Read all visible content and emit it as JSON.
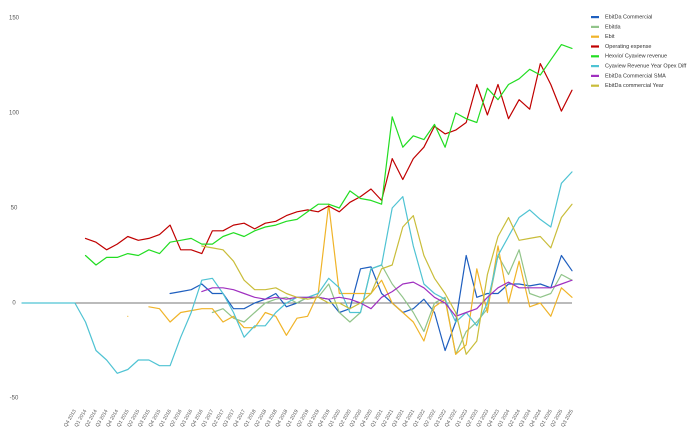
{
  "chart_data": {
    "type": "line",
    "categories": [
      null,
      null,
      null,
      null,
      null,
      "Q4 2013",
      "Q1 2014",
      "Q2 2014",
      "Q3 2014",
      "Q4 2014",
      "Q1 2015",
      "Q2 2015",
      "Q3 2015",
      "Q4 2015",
      "Q1 2016",
      "Q2 2016",
      "Q3 2016",
      "Q4 2016",
      "Q1 2017",
      "Q2 2017",
      "Q3 2017",
      "Q4 2017",
      "Q1 2018",
      "Q2 2018",
      "Q3 2018",
      "Q4 2018",
      "Q1 2019",
      "Q2 2019",
      "Q3 2019",
      "Q4 2019",
      "Q1 2020",
      "Q2 2020",
      "Q3 2020",
      "Q4 2020",
      "Q1 2021",
      "Q2 2021",
      "Q3 2021",
      "Q4 2021",
      "Q1 2022",
      "Q2 2022",
      "Q3 2022",
      "Q4 2022",
      "Q1 2023",
      "Q2 2023",
      "Q3 2023",
      "Q4 2023",
      "Q1 2024",
      "Q2 2024",
      "Q3 2024",
      "Q4 2024",
      "Q1 2025",
      "Q2 2025",
      "Q3 2025"
    ],
    "series": [
      {
        "name": "EbitDa Commercial",
        "color": "#1f5fbf",
        "values": [
          null,
          null,
          null,
          null,
          null,
          null,
          null,
          null,
          null,
          null,
          null,
          null,
          null,
          null,
          5,
          6,
          7,
          10,
          5,
          5,
          -3,
          -3,
          0,
          2,
          5,
          -2,
          0,
          3,
          3,
          2,
          -5,
          -3,
          18,
          19,
          5,
          0,
          -5,
          -3,
          2,
          -5,
          -25,
          -10,
          25,
          3,
          5,
          5,
          10,
          10,
          9,
          10,
          8,
          25,
          17
        ]
      },
      {
        "name": "Ebitda",
        "color": "#91c48a",
        "values": [
          null,
          null,
          null,
          null,
          null,
          null,
          null,
          null,
          null,
          null,
          null,
          null,
          null,
          null,
          null,
          null,
          null,
          null,
          -5,
          -3,
          -8,
          -10,
          -5,
          0,
          2,
          3,
          0,
          3,
          3,
          10,
          -5,
          -10,
          -5,
          18,
          20,
          10,
          3,
          -5,
          -15,
          0,
          3,
          -27,
          -15,
          -10,
          -3,
          25,
          15,
          28,
          5,
          3,
          5,
          15,
          12
        ]
      },
      {
        "name": "Ebit",
        "color": "#f0b429",
        "values": [
          null,
          null,
          null,
          null,
          null,
          null,
          null,
          null,
          null,
          null,
          -7,
          null,
          -2,
          -3,
          -10,
          -5,
          -4,
          -3,
          -3,
          -10,
          -7,
          -13,
          -13,
          -5,
          -7,
          -17,
          -8,
          -7,
          5,
          52,
          5,
          5,
          5,
          5,
          12,
          0,
          -5,
          -10,
          -20,
          -2,
          2,
          -27,
          -22,
          18,
          -5,
          30,
          0,
          22,
          -2,
          0,
          -7,
          8,
          3
        ]
      },
      {
        "name": "Operating expense",
        "color": "#c00000",
        "values": [
          null,
          null,
          null,
          null,
          null,
          null,
          34,
          32,
          28,
          31,
          35,
          33,
          34,
          36,
          41,
          28,
          28,
          26,
          38,
          38,
          41,
          42,
          39,
          42,
          43,
          46,
          48,
          49,
          48,
          51,
          48,
          53,
          56,
          60,
          54,
          76,
          65,
          76,
          82,
          93,
          89,
          91,
          95,
          115,
          99,
          115,
          97,
          107,
          102,
          126,
          115,
          101,
          112
        ]
      },
      {
        "name": "Hexvio/ Cyaview revenue",
        "color": "#22dd22",
        "values": [
          null,
          null,
          null,
          null,
          null,
          null,
          25,
          20,
          24,
          24,
          26,
          25,
          28,
          26,
          32,
          33,
          34,
          31,
          31,
          35,
          37,
          35,
          38,
          40,
          41,
          43,
          44,
          48,
          52,
          52,
          50,
          59,
          55,
          54,
          52,
          98,
          82,
          88,
          86,
          94,
          82,
          100,
          97,
          95,
          113,
          107,
          115,
          118,
          123,
          120,
          128,
          136,
          134
        ]
      },
      {
        "name": "Cyaview Revenue Year Opex Diff",
        "color": "#4fc3d3",
        "values": [
          0,
          0,
          0,
          0,
          0,
          0,
          -10,
          -25,
          -30,
          -37,
          -35,
          -30,
          -30,
          -33,
          -33,
          -18,
          -5,
          12,
          13,
          5,
          -5,
          -18,
          -12,
          -12,
          -5,
          0,
          3,
          3,
          5,
          13,
          8,
          -5,
          -5,
          18,
          20,
          50,
          56,
          30,
          10,
          5,
          2,
          -10,
          -5,
          -12,
          0,
          25,
          35,
          45,
          49,
          44,
          40,
          63,
          69
        ]
      },
      {
        "name": "EbitDa Commercial SMA",
        "color": "#a030c0",
        "values": [
          null,
          null,
          null,
          null,
          null,
          null,
          null,
          null,
          null,
          null,
          null,
          null,
          null,
          null,
          null,
          null,
          null,
          6,
          8,
          8,
          7,
          5,
          3,
          2,
          3,
          2,
          3,
          3,
          3,
          2,
          3,
          2,
          0,
          -3,
          3,
          6,
          10,
          11,
          8,
          3,
          0,
          -7,
          -5,
          -3,
          3,
          8,
          11,
          8,
          8,
          8,
          8,
          10,
          12
        ]
      },
      {
        "name": "EbitDa commercial Year",
        "color": "#c9bd3a",
        "values": [
          null,
          null,
          null,
          null,
          null,
          null,
          null,
          null,
          null,
          null,
          null,
          null,
          null,
          null,
          null,
          null,
          null,
          30,
          29,
          28,
          22,
          12,
          7,
          7,
          8,
          5,
          3,
          2,
          3,
          0,
          0,
          -3,
          0,
          5,
          18,
          20,
          40,
          46,
          25,
          13,
          5,
          -5,
          -27,
          -20,
          15,
          35,
          45,
          33,
          34,
          35,
          29,
          45,
          52
        ]
      }
    ],
    "ylim": [
      -50,
      150
    ],
    "yticks": [
      -50,
      0,
      50,
      100,
      150
    ],
    "zero_line": true
  }
}
